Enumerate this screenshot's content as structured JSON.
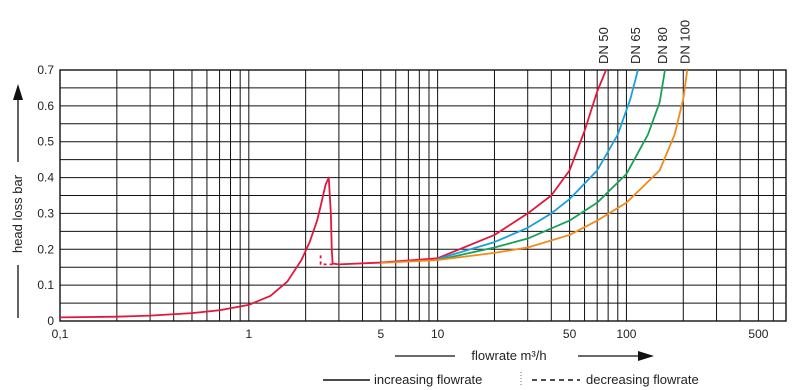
{
  "chart_data": {
    "type": "line",
    "title": "",
    "xlabel": "flowrate m³/h",
    "ylabel": "head loss bar",
    "x_scale": "log",
    "xlim": [
      0.1,
      700
    ],
    "ylim": [
      0,
      0.7
    ],
    "x_ticks": [
      {
        "value": 0.1,
        "label": "0,1"
      },
      {
        "value": 1,
        "label": "1"
      },
      {
        "value": 5,
        "label": "5"
      },
      {
        "value": 10,
        "label": "10"
      },
      {
        "value": 50,
        "label": "50"
      },
      {
        "value": 100,
        "label": "100"
      },
      {
        "value": 500,
        "label": "500"
      }
    ],
    "y_ticks": [
      {
        "value": 0,
        "label": "0"
      },
      {
        "value": 0.1,
        "label": "0.1"
      },
      {
        "value": 0.2,
        "label": "0.2"
      },
      {
        "value": 0.3,
        "label": "0.3"
      },
      {
        "value": 0.4,
        "label": "0.4"
      },
      {
        "value": 0.5,
        "label": "0.5"
      },
      {
        "value": 0.6,
        "label": "0.6"
      },
      {
        "value": 0.7,
        "label": "0.7"
      }
    ],
    "grid": true,
    "series": [
      {
        "name": "DN 50",
        "color": "#e3173e",
        "line": "solid",
        "points": [
          [
            0.1,
            0.01
          ],
          [
            0.2,
            0.012
          ],
          [
            0.3,
            0.015
          ],
          [
            0.5,
            0.022
          ],
          [
            0.7,
            0.03
          ],
          [
            1,
            0.045
          ],
          [
            1.3,
            0.07
          ],
          [
            1.6,
            0.11
          ],
          [
            1.9,
            0.17
          ],
          [
            2.1,
            0.22
          ],
          [
            2.3,
            0.28
          ],
          [
            2.4,
            0.32
          ],
          [
            2.55,
            0.38
          ],
          [
            2.65,
            0.4
          ],
          [
            2.72,
            0.3
          ],
          [
            2.75,
            0.2
          ],
          [
            2.78,
            0.16
          ],
          [
            3,
            0.158
          ],
          [
            5,
            0.163
          ],
          [
            10,
            0.175
          ],
          [
            20,
            0.24
          ],
          [
            30,
            0.3
          ],
          [
            40,
            0.35
          ],
          [
            50,
            0.42
          ],
          [
            60,
            0.53
          ],
          [
            70,
            0.64
          ],
          [
            78,
            0.7
          ]
        ]
      },
      {
        "name": "DN 50 decreasing",
        "color": "#e3173e",
        "line": "dashed",
        "points": [
          [
            2.78,
            0.158
          ],
          [
            2.4,
            0.158
          ],
          [
            2.4,
            0.19
          ]
        ]
      },
      {
        "name": "DN 65",
        "color": "#1ba0dc",
        "line": "solid",
        "points": [
          [
            10,
            0.173
          ],
          [
            20,
            0.22
          ],
          [
            30,
            0.26
          ],
          [
            40,
            0.3
          ],
          [
            50,
            0.34
          ],
          [
            70,
            0.42
          ],
          [
            90,
            0.52
          ],
          [
            105,
            0.62
          ],
          [
            115,
            0.7
          ]
        ]
      },
      {
        "name": "DN 80",
        "color": "#1aa05a",
        "line": "solid",
        "points": [
          [
            10,
            0.17
          ],
          [
            20,
            0.205
          ],
          [
            30,
            0.23
          ],
          [
            50,
            0.28
          ],
          [
            70,
            0.33
          ],
          [
            100,
            0.41
          ],
          [
            130,
            0.52
          ],
          [
            150,
            0.61
          ],
          [
            160,
            0.7
          ]
        ]
      },
      {
        "name": "DN 100",
        "color": "#f08a1c",
        "line": "solid",
        "points": [
          [
            5,
            0.162
          ],
          [
            10,
            0.17
          ],
          [
            20,
            0.19
          ],
          [
            30,
            0.205
          ],
          [
            50,
            0.24
          ],
          [
            70,
            0.28
          ],
          [
            100,
            0.33
          ],
          [
            150,
            0.42
          ],
          [
            180,
            0.52
          ],
          [
            200,
            0.62
          ],
          [
            210,
            0.7
          ]
        ]
      }
    ],
    "legend": {
      "position": "bottom-right",
      "entries": [
        {
          "label": "increasing flowrate",
          "line": "solid"
        },
        {
          "label": "decreasing flowrate",
          "line": "dashed"
        }
      ]
    }
  }
}
